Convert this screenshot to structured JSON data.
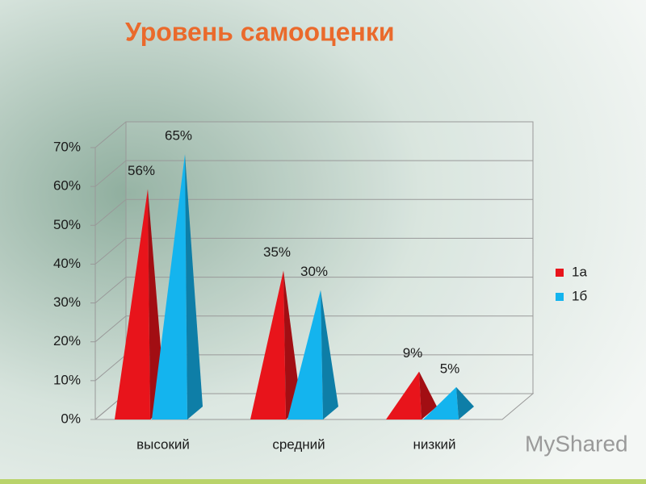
{
  "chart_data": {
    "type": "pyramid",
    "title": "Уровень самооценки",
    "categories": [
      "высокий",
      "средний",
      "низкий"
    ],
    "series": [
      {
        "name": "1а",
        "color": "#e8141b",
        "values": [
          56,
          35,
          9
        ],
        "value_labels": [
          "56%",
          "35%",
          "9%"
        ]
      },
      {
        "name": "1б",
        "color": "#14b4ee",
        "values": [
          65,
          30,
          5
        ],
        "value_labels": [
          "65%",
          "30%",
          "5%"
        ]
      }
    ],
    "ylim": [
      0,
      70
    ],
    "yticks": [
      {
        "value": 0,
        "label": "0%"
      },
      {
        "value": 10,
        "label": "10%"
      },
      {
        "value": 20,
        "label": "20%"
      },
      {
        "value": 30,
        "label": "30%"
      },
      {
        "value": 40,
        "label": "40%"
      },
      {
        "value": 50,
        "label": "50%"
      },
      {
        "value": 60,
        "label": "60%"
      },
      {
        "value": 70,
        "label": "70%"
      }
    ],
    "grid": true,
    "legend": "right",
    "watermark": "MyShared"
  }
}
